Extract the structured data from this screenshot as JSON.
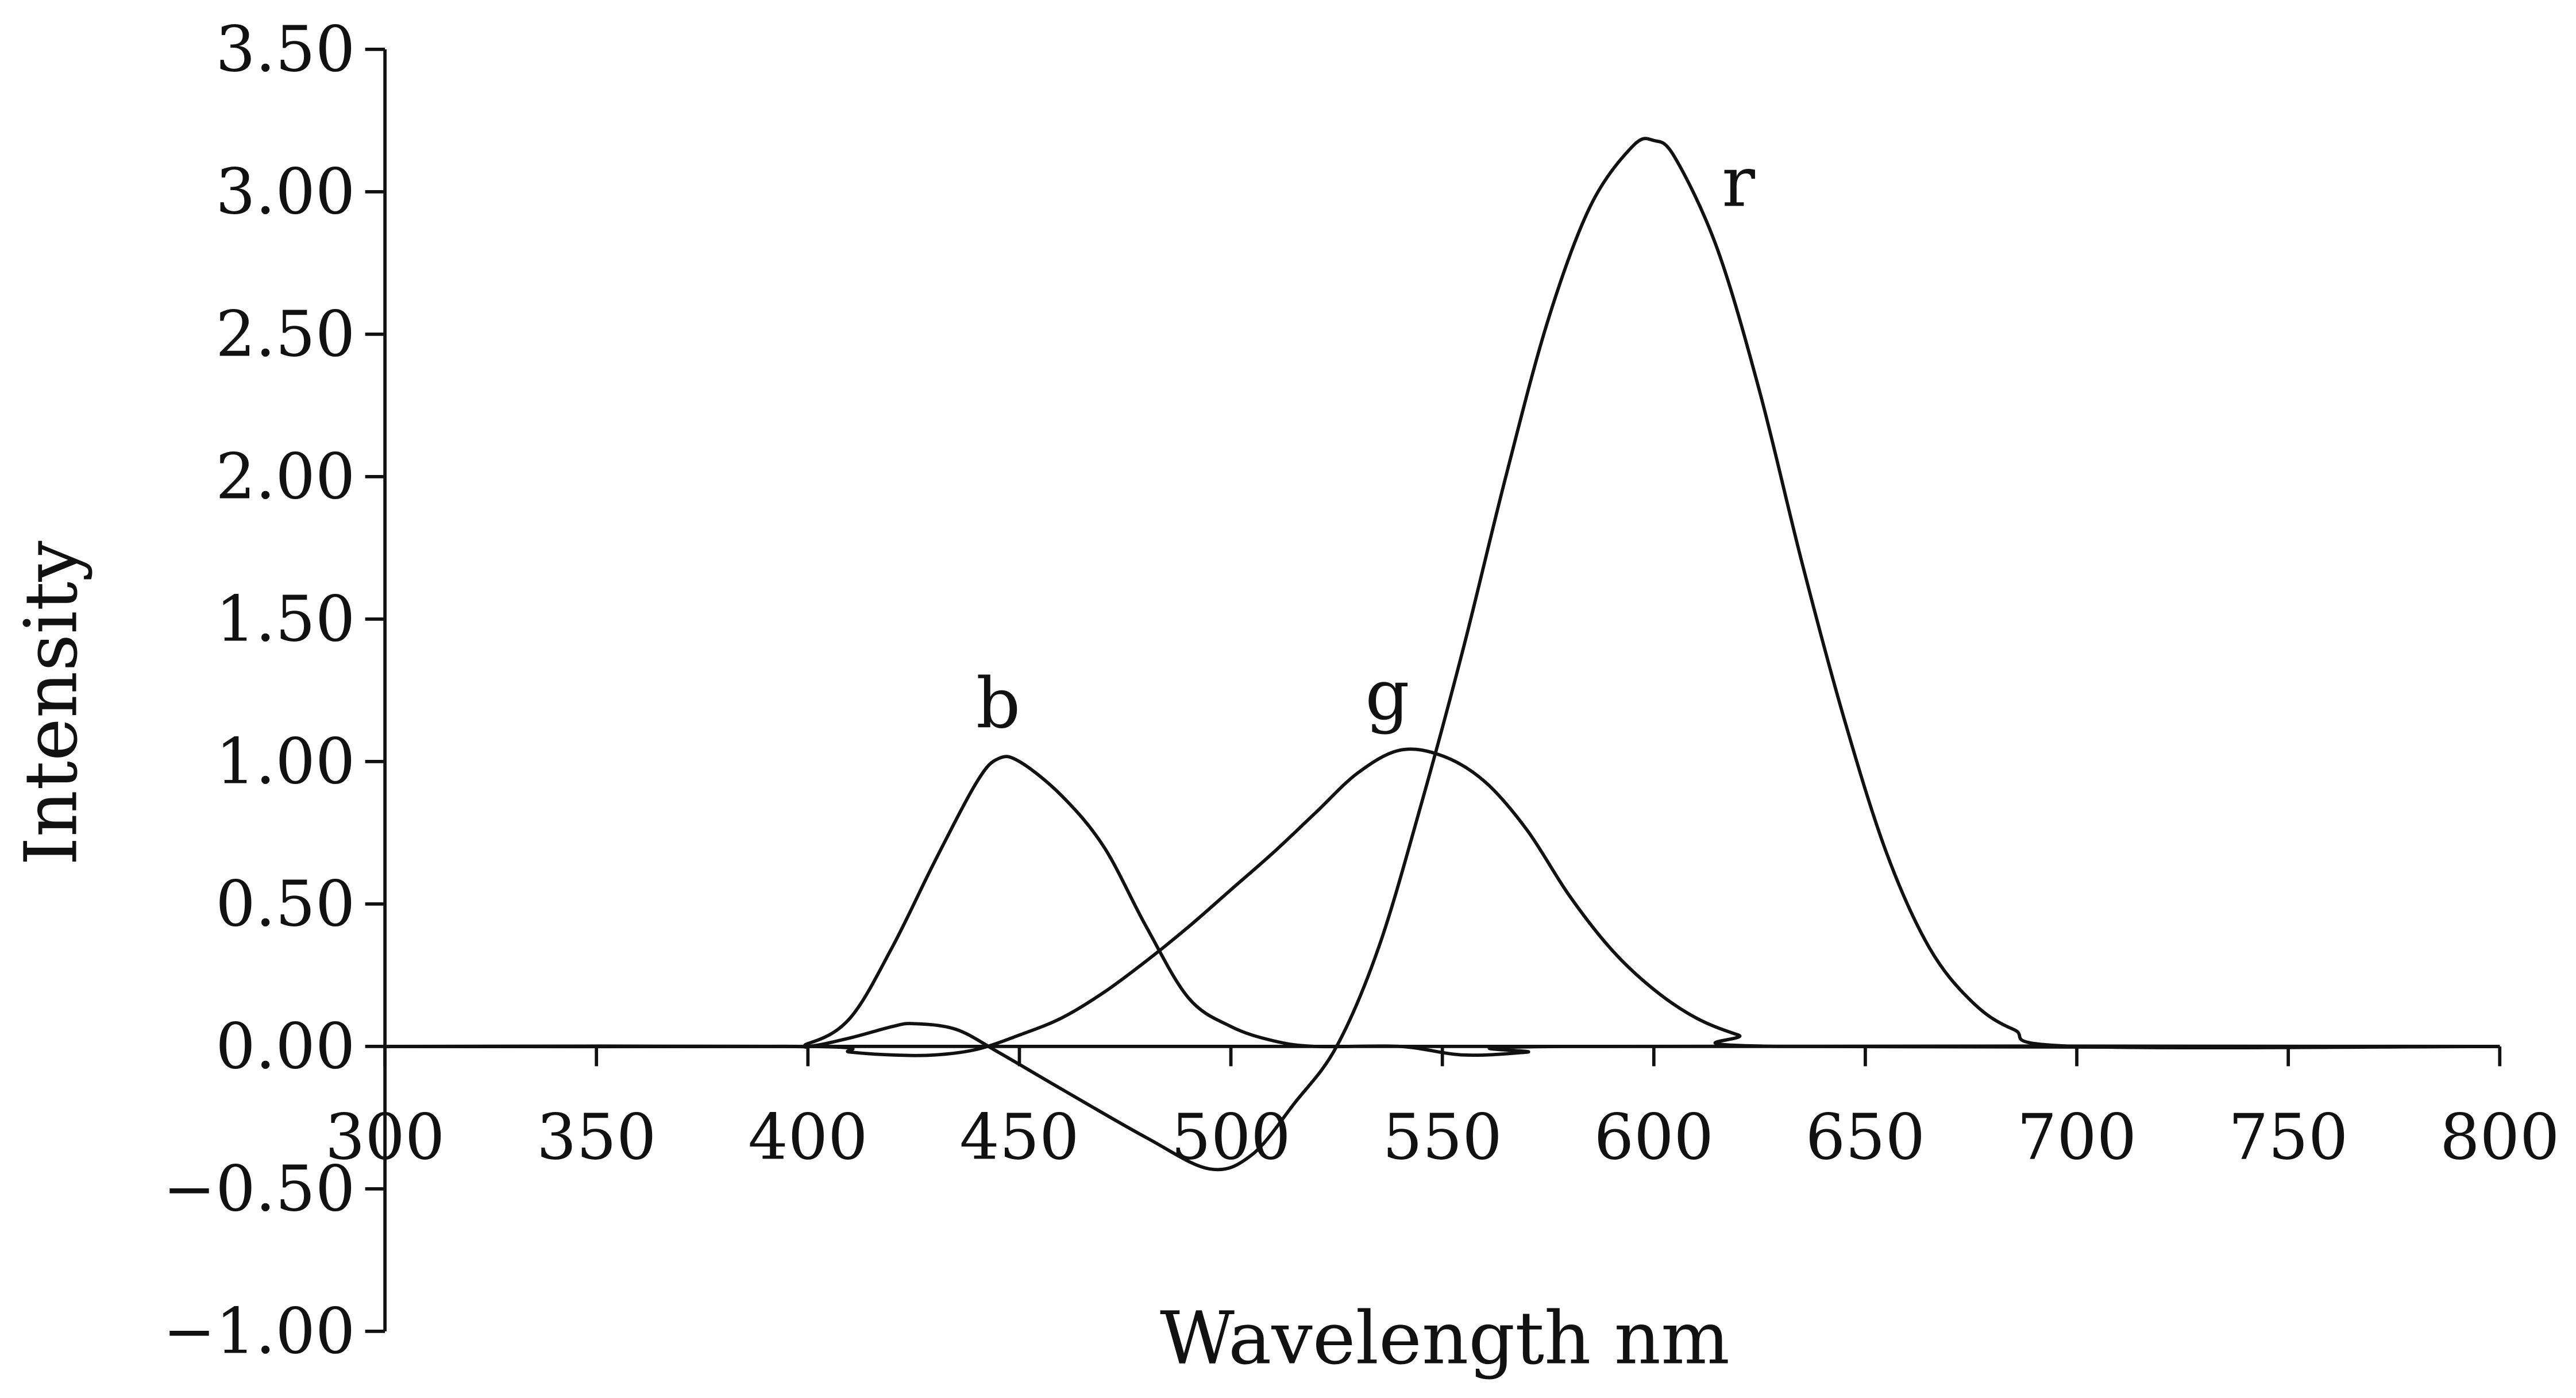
{
  "chart_data": {
    "type": "line",
    "title": "",
    "xlabel": "Wavelength nm",
    "ylabel": "Intensity",
    "xlim": [
      300,
      800
    ],
    "ylim": [
      -1.0,
      3.5
    ],
    "xticks": [
      "300",
      "350",
      "400",
      "450",
      "500",
      "550",
      "600",
      "650",
      "700",
      "750",
      "800"
    ],
    "yticks": [
      "3.50",
      "3.00",
      "2.50",
      "2.00",
      "1.50",
      "1.00",
      "0.50",
      "0.00",
      "−0.50",
      "−1.00"
    ],
    "grid": false,
    "legend": "none",
    "series": [
      {
        "name": "b",
        "label_at": [
          445,
          1.12
        ],
        "x": [
          300,
          390,
          400,
          410,
          420,
          430,
          440,
          445,
          450,
          460,
          470,
          480,
          490,
          500,
          510,
          520,
          540,
          555,
          570,
          580,
          800
        ],
        "y": [
          0,
          0,
          0.01,
          0.1,
          0.35,
          0.65,
          0.93,
          1.01,
          1.0,
          0.88,
          0.7,
          0.42,
          0.17,
          0.07,
          0.02,
          0,
          0,
          -0.03,
          -0.02,
          0,
          0
        ]
      },
      {
        "name": "g",
        "label_at": [
          537,
          1.15
        ],
        "x": [
          300,
          400,
          410,
          420,
          430,
          440,
          450,
          460,
          470,
          480,
          490,
          500,
          510,
          520,
          530,
          540,
          550,
          560,
          570,
          580,
          590,
          600,
          610,
          620,
          630,
          800
        ],
        "y": [
          0,
          0,
          -0.02,
          -0.03,
          -0.03,
          -0.01,
          0.04,
          0.1,
          0.19,
          0.3,
          0.42,
          0.55,
          0.68,
          0.82,
          0.96,
          1.04,
          1.02,
          0.93,
          0.76,
          0.53,
          0.34,
          0.2,
          0.1,
          0.04,
          0,
          0
        ]
      },
      {
        "name": "r",
        "label_at": [
          620,
          2.95
        ],
        "x": [
          300,
          390,
          400,
          410,
          420,
          425,
          435,
          445,
          460,
          480,
          495,
          505,
          515,
          525,
          535,
          545,
          555,
          565,
          575,
          585,
          595,
          600,
          605,
          615,
          625,
          635,
          645,
          655,
          665,
          675,
          685,
          700,
          800
        ],
        "y": [
          0,
          0,
          0,
          0.03,
          0.07,
          0.08,
          0.06,
          -0.02,
          -0.15,
          -0.32,
          -0.43,
          -0.38,
          -0.2,
          0,
          0.35,
          0.85,
          1.4,
          2.0,
          2.55,
          2.95,
          3.16,
          3.18,
          3.12,
          2.8,
          2.3,
          1.7,
          1.15,
          0.68,
          0.35,
          0.16,
          0.06,
          0,
          0
        ]
      }
    ]
  }
}
